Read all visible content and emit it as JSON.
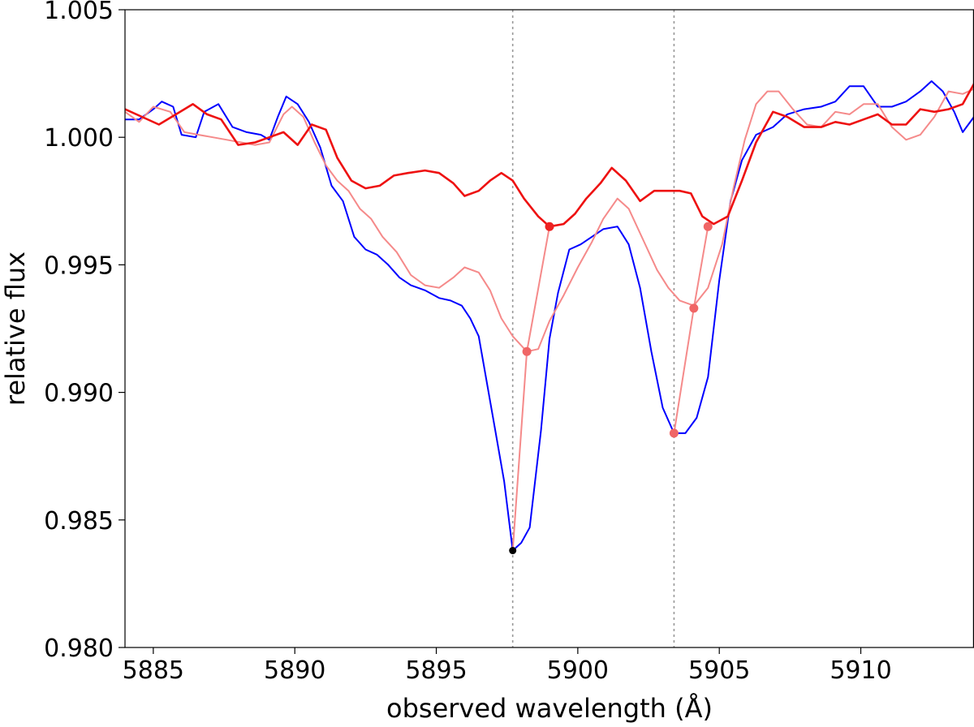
{
  "chart_data": {
    "type": "line",
    "title": "",
    "xlabel": "observed wavelength (Å)",
    "ylabel": "relative flux",
    "xlim": [
      5884,
      5914
    ],
    "ylim": [
      0.98,
      1.005
    ],
    "xticks": [
      5885,
      5890,
      5895,
      5900,
      5905,
      5910
    ],
    "xtick_labels": [
      "5885",
      "5890",
      "5895",
      "5900",
      "5905",
      "5910"
    ],
    "yticks": [
      0.98,
      0.985,
      0.99,
      0.995,
      1.0,
      1.005
    ],
    "ytick_labels": [
      "0.980",
      "0.985",
      "0.990",
      "0.995",
      "1.000",
      "1.005"
    ],
    "grid": false,
    "legend": "none",
    "vlines": [
      5897.7,
      5903.4
    ],
    "series": [
      {
        "color": "#0000ff",
        "points": [
          [
            5884.0,
            1.0007
          ],
          [
            5884.5,
            1.0007
          ],
          [
            5885.0,
            1.0011
          ],
          [
            5885.3,
            1.0014
          ],
          [
            5885.7,
            1.0012
          ],
          [
            5886.0,
            1.0001
          ],
          [
            5886.5,
            1.0
          ],
          [
            5886.8,
            1.001
          ],
          [
            5887.3,
            1.0013
          ],
          [
            5887.8,
            1.0004
          ],
          [
            5888.3,
            1.0002
          ],
          [
            5888.8,
            1.0001
          ],
          [
            5889.1,
            0.9999
          ],
          [
            5889.4,
            1.0008
          ],
          [
            5889.7,
            1.0016
          ],
          [
            5890.1,
            1.0013
          ],
          [
            5890.5,
            1.0006
          ],
          [
            5890.9,
            0.9996
          ],
          [
            5891.3,
            0.9981
          ],
          [
            5891.7,
            0.9975
          ],
          [
            5892.1,
            0.9961
          ],
          [
            5892.5,
            0.9956
          ],
          [
            5892.9,
            0.9954
          ],
          [
            5893.3,
            0.995
          ],
          [
            5893.7,
            0.9945
          ],
          [
            5894.1,
            0.9942
          ],
          [
            5894.6,
            0.994
          ],
          [
            5895.1,
            0.9937
          ],
          [
            5895.5,
            0.9936
          ],
          [
            5895.9,
            0.9934
          ],
          [
            5896.2,
            0.9929
          ],
          [
            5896.5,
            0.9922
          ],
          [
            5896.8,
            0.9903
          ],
          [
            5897.1,
            0.9884
          ],
          [
            5897.4,
            0.9865
          ],
          [
            5897.7,
            0.9838
          ],
          [
            5898.0,
            0.9841
          ],
          [
            5898.3,
            0.9847
          ],
          [
            5898.7,
            0.9885
          ],
          [
            5899.0,
            0.9921
          ],
          [
            5899.3,
            0.9939
          ],
          [
            5899.7,
            0.9956
          ],
          [
            5900.1,
            0.9958
          ],
          [
            5900.5,
            0.9961
          ],
          [
            5900.9,
            0.9964
          ],
          [
            5901.4,
            0.9965
          ],
          [
            5901.8,
            0.9958
          ],
          [
            5902.2,
            0.9941
          ],
          [
            5902.6,
            0.9916
          ],
          [
            5903.0,
            0.9894
          ],
          [
            5903.4,
            0.9884
          ],
          [
            5903.8,
            0.9884
          ],
          [
            5904.2,
            0.989
          ],
          [
            5904.6,
            0.9906
          ],
          [
            5905.0,
            0.9944
          ],
          [
            5905.4,
            0.9975
          ],
          [
            5905.8,
            0.9991
          ],
          [
            5906.3,
            1.0001
          ],
          [
            5906.9,
            1.0004
          ],
          [
            5907.4,
            1.0009
          ],
          [
            5908.0,
            1.0011
          ],
          [
            5908.6,
            1.0012
          ],
          [
            5909.1,
            1.0014
          ],
          [
            5909.6,
            1.002
          ],
          [
            5910.1,
            1.002
          ],
          [
            5910.6,
            1.0012
          ],
          [
            5911.1,
            1.0012
          ],
          [
            5911.6,
            1.0014
          ],
          [
            5912.1,
            1.0018
          ],
          [
            5912.5,
            1.0022
          ],
          [
            5912.9,
            1.0018
          ],
          [
            5913.3,
            1.001
          ],
          [
            5913.6,
            1.0002
          ],
          [
            5914.0,
            1.0008
          ]
        ]
      },
      {
        "color": "#f58a8a",
        "points": [
          [
            5884.0,
            1.001
          ],
          [
            5884.5,
            1.0006
          ],
          [
            5885.0,
            1.0012
          ],
          [
            5885.6,
            1.001
          ],
          [
            5886.1,
            1.0002
          ],
          [
            5886.6,
            1.0001
          ],
          [
            5887.1,
            1.0
          ],
          [
            5887.6,
            0.9999
          ],
          [
            5888.1,
            0.9998
          ],
          [
            5888.6,
            0.9997
          ],
          [
            5889.1,
            0.9998
          ],
          [
            5889.6,
            1.0009
          ],
          [
            5889.9,
            1.0012
          ],
          [
            5890.3,
            1.0008
          ],
          [
            5890.7,
            0.9998
          ],
          [
            5891.1,
            0.9989
          ],
          [
            5891.5,
            0.9983
          ],
          [
            5891.9,
            0.9979
          ],
          [
            5892.3,
            0.9972
          ],
          [
            5892.7,
            0.9968
          ],
          [
            5893.1,
            0.9961
          ],
          [
            5893.6,
            0.9955
          ],
          [
            5894.1,
            0.9946
          ],
          [
            5894.6,
            0.9942
          ],
          [
            5895.1,
            0.9941
          ],
          [
            5895.6,
            0.9945
          ],
          [
            5896.0,
            0.9949
          ],
          [
            5896.5,
            0.9947
          ],
          [
            5896.9,
            0.994
          ],
          [
            5897.3,
            0.9929
          ],
          [
            5897.7,
            0.9922
          ],
          [
            5898.2,
            0.9916
          ],
          [
            5898.6,
            0.9917
          ],
          [
            5899.0,
            0.9928
          ],
          [
            5899.5,
            0.9938
          ],
          [
            5900.0,
            0.9949
          ],
          [
            5900.5,
            0.9959
          ],
          [
            5900.9,
            0.9968
          ],
          [
            5901.4,
            0.9976
          ],
          [
            5901.8,
            0.9972
          ],
          [
            5902.3,
            0.996
          ],
          [
            5902.8,
            0.9948
          ],
          [
            5903.2,
            0.9941
          ],
          [
            5903.6,
            0.9936
          ],
          [
            5904.1,
            0.9934
          ],
          [
            5904.6,
            0.9941
          ],
          [
            5905.1,
            0.9958
          ],
          [
            5905.5,
            0.998
          ],
          [
            5905.9,
            0.9999
          ],
          [
            5906.3,
            1.0013
          ],
          [
            5906.7,
            1.0018
          ],
          [
            5907.1,
            1.0018
          ],
          [
            5907.6,
            1.0011
          ],
          [
            5908.1,
            1.0005
          ],
          [
            5908.6,
            1.0004
          ],
          [
            5909.1,
            1.001
          ],
          [
            5909.6,
            1.0009
          ],
          [
            5910.1,
            1.0013
          ],
          [
            5910.6,
            1.0013
          ],
          [
            5911.1,
            1.0004
          ],
          [
            5911.6,
            0.9999
          ],
          [
            5912.1,
            1.0001
          ],
          [
            5912.6,
            1.0008
          ],
          [
            5913.1,
            1.0018
          ],
          [
            5913.6,
            1.0017
          ],
          [
            5914.0,
            1.0019
          ]
        ]
      },
      {
        "color": "#ee1111",
        "points": [
          [
            5884.0,
            1.0011
          ],
          [
            5884.6,
            1.0008
          ],
          [
            5885.2,
            1.0005
          ],
          [
            5885.8,
            1.0009
          ],
          [
            5886.4,
            1.0013
          ],
          [
            5886.9,
            1.0009
          ],
          [
            5887.4,
            1.0007
          ],
          [
            5888.0,
            0.9997
          ],
          [
            5888.6,
            0.9998
          ],
          [
            5889.1,
            1.0
          ],
          [
            5889.6,
            1.0002
          ],
          [
            5890.1,
            0.9997
          ],
          [
            5890.6,
            1.0005
          ],
          [
            5891.1,
            1.0003
          ],
          [
            5891.5,
            0.9992
          ],
          [
            5892.0,
            0.9983
          ],
          [
            5892.5,
            0.998
          ],
          [
            5893.0,
            0.9981
          ],
          [
            5893.5,
            0.9985
          ],
          [
            5894.0,
            0.9986
          ],
          [
            5894.6,
            0.9987
          ],
          [
            5895.1,
            0.9986
          ],
          [
            5895.6,
            0.9982
          ],
          [
            5896.0,
            0.9977
          ],
          [
            5896.5,
            0.9979
          ],
          [
            5896.9,
            0.9983
          ],
          [
            5897.3,
            0.9986
          ],
          [
            5897.7,
            0.9983
          ],
          [
            5898.1,
            0.9976
          ],
          [
            5898.6,
            0.9969
          ],
          [
            5899.0,
            0.9965
          ],
          [
            5899.5,
            0.9966
          ],
          [
            5899.9,
            0.997
          ],
          [
            5900.3,
            0.9976
          ],
          [
            5900.8,
            0.9982
          ],
          [
            5901.2,
            0.9988
          ],
          [
            5901.7,
            0.9983
          ],
          [
            5902.2,
            0.9975
          ],
          [
            5902.7,
            0.9979
          ],
          [
            5903.1,
            0.9979
          ],
          [
            5903.6,
            0.9979
          ],
          [
            5904.0,
            0.9978
          ],
          [
            5904.4,
            0.9969
          ],
          [
            5904.8,
            0.9966
          ],
          [
            5905.3,
            0.9969
          ],
          [
            5905.8,
            0.9983
          ],
          [
            5906.3,
            0.9998
          ],
          [
            5906.9,
            1.001
          ],
          [
            5907.4,
            1.0008
          ],
          [
            5908.0,
            1.0004
          ],
          [
            5908.6,
            1.0004
          ],
          [
            5909.1,
            1.0006
          ],
          [
            5909.6,
            1.0005
          ],
          [
            5910.1,
            1.0007
          ],
          [
            5910.6,
            1.0009
          ],
          [
            5911.1,
            1.0005
          ],
          [
            5911.6,
            1.0005
          ],
          [
            5912.1,
            1.0011
          ],
          [
            5912.6,
            1.001
          ],
          [
            5913.1,
            1.0011
          ],
          [
            5913.6,
            1.0013
          ],
          [
            5914.0,
            1.0021
          ]
        ]
      }
    ],
    "markers": [
      {
        "x": 5897.7,
        "y": 0.9838,
        "color": "#000000",
        "r": 4.5
      },
      {
        "x": 5898.2,
        "y": 0.9916,
        "color": "#f06666",
        "r": 5.5
      },
      {
        "x": 5899.0,
        "y": 0.9965,
        "color": "#ee2222",
        "r": 5.5
      },
      {
        "x": 5903.4,
        "y": 0.9884,
        "color": "#f06666",
        "r": 5.5
      },
      {
        "x": 5904.1,
        "y": 0.9933,
        "color": "#f06666",
        "r": 5.5
      },
      {
        "x": 5904.6,
        "y": 0.9965,
        "color": "#f06666",
        "r": 5.5
      }
    ],
    "connectors": [
      {
        "color": "#f58a8a",
        "points": [
          [
            5897.7,
            0.9838
          ],
          [
            5898.2,
            0.9916
          ],
          [
            5899.0,
            0.9965
          ]
        ]
      },
      {
        "color": "#f58a8a",
        "points": [
          [
            5903.4,
            0.9884
          ],
          [
            5904.1,
            0.9933
          ],
          [
            5904.6,
            0.9965
          ]
        ]
      }
    ]
  }
}
